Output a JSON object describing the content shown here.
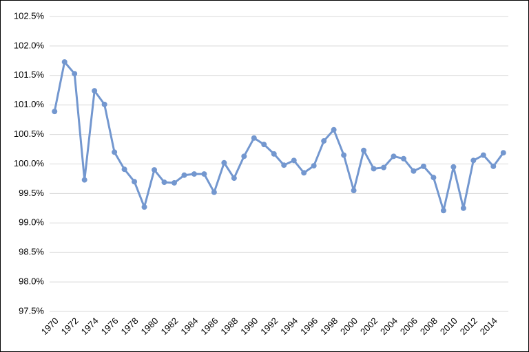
{
  "chart_data": {
    "type": "line",
    "categories": [
      "1970",
      null,
      "1972",
      null,
      "1974",
      null,
      "1976",
      null,
      "1978",
      null,
      "1980",
      null,
      "1982",
      null,
      "1984",
      null,
      "1986",
      null,
      "1988",
      null,
      "1990",
      null,
      "1992",
      null,
      "1994",
      null,
      "1996",
      null,
      "1998",
      null,
      "2000",
      null,
      "2002",
      null,
      "2004",
      null,
      "2006",
      null,
      "2008",
      null,
      "2010",
      null,
      "2012",
      null,
      "2014",
      null
    ],
    "series": [
      {
        "color": "#7397cf",
        "values": [
          100.89,
          101.73,
          101.53,
          99.73,
          101.24,
          101.01,
          100.2,
          99.91,
          99.7,
          99.27,
          99.9,
          99.69,
          99.68,
          99.81,
          99.83,
          99.83,
          99.52,
          100.02,
          99.76,
          100.13,
          100.44,
          100.33,
          100.17,
          99.98,
          100.06,
          99.85,
          99.97,
          100.39,
          100.58,
          100.15,
          99.55,
          100.23,
          99.92,
          99.94,
          100.13,
          100.09,
          99.88,
          99.96,
          99.77,
          99.21,
          99.95,
          99.25,
          100.06,
          100.15,
          99.96,
          100.19
        ]
      }
    ],
    "ylim": [
      97.5,
      102.5
    ],
    "yticks": [
      {
        "value": 97.5,
        "label": "97.5%"
      },
      {
        "value": 98.0,
        "label": "98.0%"
      },
      {
        "value": 98.5,
        "label": "98.5%"
      },
      {
        "value": 99.0,
        "label": "99.0%"
      },
      {
        "value": 99.5,
        "label": "99.5%"
      },
      {
        "value": 100.0,
        "label": "100.0%"
      },
      {
        "value": 100.5,
        "label": "100.5%"
      },
      {
        "value": 101.0,
        "label": "101.0%"
      },
      {
        "value": 101.5,
        "label": "101.5%"
      },
      {
        "value": 102.0,
        "label": "102.0%"
      },
      {
        "value": 102.5,
        "label": "102.5%"
      }
    ],
    "grid": true
  }
}
